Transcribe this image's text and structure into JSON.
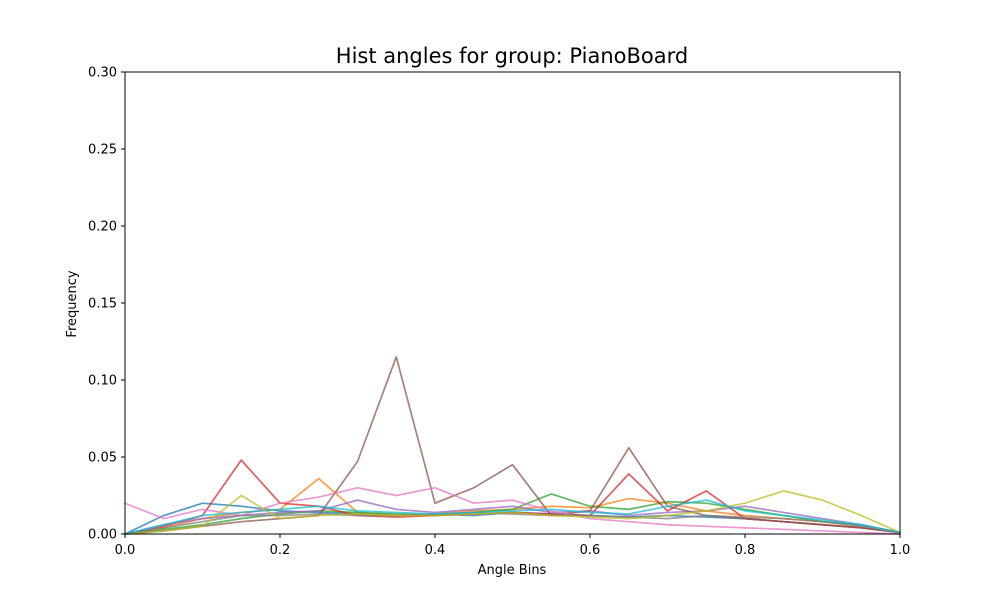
{
  "chart_data": {
    "type": "line",
    "title": "Hist angles for group: PianoBoard",
    "xlabel": "Angle Bins",
    "ylabel": "Frequency",
    "xlim": [
      0.0,
      1.0
    ],
    "ylim": [
      0.0,
      0.3
    ],
    "x_ticks": [
      "0.0",
      "0.2",
      "0.4",
      "0.6",
      "0.8",
      "1.0"
    ],
    "y_ticks": [
      "0.00",
      "0.05",
      "0.10",
      "0.15",
      "0.20",
      "0.25",
      "0.30"
    ],
    "grid": false,
    "legend": "none",
    "x": [
      0.0,
      0.05,
      0.1,
      0.15,
      0.2,
      0.25,
      0.3,
      0.35,
      0.4,
      0.45,
      0.5,
      0.55,
      0.6,
      0.65,
      0.7,
      0.75,
      0.8,
      0.85,
      0.9,
      0.95,
      1.0
    ],
    "series": [
      {
        "color": "#1f77b4",
        "values": [
          0.0,
          0.012,
          0.02,
          0.018,
          0.015,
          0.014,
          0.013,
          0.012,
          0.013,
          0.012,
          0.014,
          0.013,
          0.012,
          0.011,
          0.012,
          0.011,
          0.01,
          0.008,
          0.006,
          0.004,
          0.001
        ]
      },
      {
        "color": "#ff7f0e",
        "values": [
          0.0,
          0.004,
          0.01,
          0.014,
          0.016,
          0.036,
          0.014,
          0.012,
          0.013,
          0.015,
          0.016,
          0.018,
          0.017,
          0.023,
          0.02,
          0.015,
          0.012,
          0.01,
          0.008,
          0.005,
          0.001
        ]
      },
      {
        "color": "#2ca02c",
        "values": [
          0.0,
          0.003,
          0.006,
          0.01,
          0.013,
          0.015,
          0.014,
          0.013,
          0.012,
          0.014,
          0.016,
          0.026,
          0.018,
          0.016,
          0.021,
          0.02,
          0.016,
          0.012,
          0.008,
          0.006,
          0.001
        ]
      },
      {
        "color": "#d62728",
        "values": [
          0.0,
          0.005,
          0.012,
          0.048,
          0.02,
          0.018,
          0.012,
          0.011,
          0.012,
          0.013,
          0.014,
          0.013,
          0.012,
          0.039,
          0.015,
          0.028,
          0.01,
          0.008,
          0.006,
          0.004,
          0.001
        ]
      },
      {
        "color": "#9467bd",
        "values": [
          0.0,
          0.006,
          0.01,
          0.012,
          0.014,
          0.015,
          0.022,
          0.016,
          0.014,
          0.016,
          0.018,
          0.014,
          0.015,
          0.012,
          0.014,
          0.015,
          0.018,
          0.014,
          0.01,
          0.006,
          0.001
        ]
      },
      {
        "color": "#8c564b",
        "values": [
          0.0,
          0.002,
          0.005,
          0.008,
          0.01,
          0.012,
          0.047,
          0.115,
          0.02,
          0.03,
          0.045,
          0.012,
          0.015,
          0.056,
          0.018,
          0.012,
          0.01,
          0.008,
          0.006,
          0.004,
          0.001
        ]
      },
      {
        "color": "#e377c2",
        "values": [
          0.02,
          0.01,
          0.016,
          0.012,
          0.02,
          0.024,
          0.03,
          0.025,
          0.03,
          0.02,
          0.022,
          0.015,
          0.01,
          0.008,
          0.006,
          0.005,
          0.004,
          0.003,
          0.002,
          0.001,
          0.0
        ]
      },
      {
        "color": "#7f7f7f",
        "values": [
          0.0,
          0.004,
          0.008,
          0.012,
          0.012,
          0.013,
          0.012,
          0.012,
          0.013,
          0.014,
          0.013,
          0.012,
          0.012,
          0.011,
          0.01,
          0.012,
          0.011,
          0.01,
          0.008,
          0.005,
          0.001
        ]
      },
      {
        "color": "#bcbd22",
        "values": [
          0.0,
          0.002,
          0.005,
          0.025,
          0.01,
          0.012,
          0.013,
          0.012,
          0.012,
          0.013,
          0.014,
          0.012,
          0.011,
          0.01,
          0.012,
          0.015,
          0.02,
          0.028,
          0.022,
          0.012,
          0.001
        ]
      },
      {
        "color": "#17becf",
        "values": [
          0.0,
          0.006,
          0.012,
          0.014,
          0.016,
          0.018,
          0.015,
          0.014,
          0.013,
          0.014,
          0.015,
          0.016,
          0.014,
          0.013,
          0.018,
          0.022,
          0.015,
          0.012,
          0.009,
          0.006,
          0.001
        ]
      }
    ]
  }
}
